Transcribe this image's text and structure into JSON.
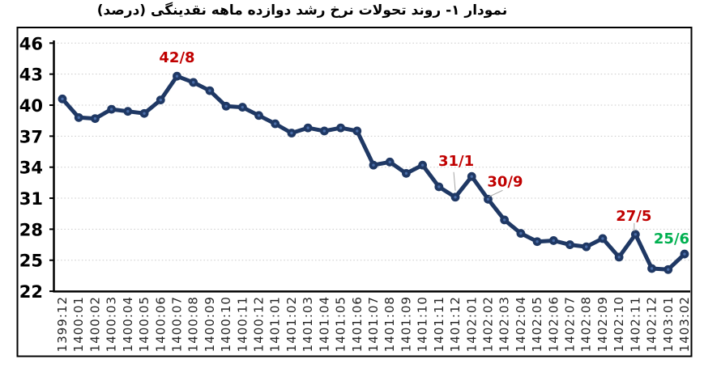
{
  "title": "نمودار ۱- روند تحولات نرخ رشد دوازده ماهه نقدینگی (درصد)",
  "colors": {
    "line": "#1f3864",
    "marker": "#1f3864",
    "marker_center": "#4a6da8",
    "annotation_red": "#c00000",
    "annotation_green": "#00b050",
    "leader_line": "#a6a6a6",
    "grid": "#c9c9c9",
    "axis": "#000000",
    "frame": "#000000",
    "x_tick_label": "#262626",
    "y_tick_label": "#000000"
  },
  "chart_data": {
    "type": "line",
    "title": "نمودار ۱- روند تحولات نرخ رشد دوازده ماهه نقدینگی (درصد)",
    "xlabel": "",
    "ylabel": "",
    "ylim": [
      22,
      46
    ],
    "y_ticks": [
      46,
      43,
      40,
      37,
      34,
      31,
      28,
      25,
      22
    ],
    "grid": "horizontal-dotted",
    "legend": "none",
    "categories": [
      "1399:12",
      "1400:01",
      "1400:02",
      "1400:03",
      "1400:04",
      "1400:05",
      "1400:06",
      "1400:07",
      "1400:08",
      "1400:09",
      "1400:10",
      "1400:11",
      "1400:12",
      "1401:01",
      "1401:02",
      "1401:03",
      "1401:04",
      "1401:05",
      "1401:06",
      "1401:07",
      "1401:08",
      "1401:09",
      "1401:10",
      "1401:11",
      "1401:12",
      "1402:01",
      "1402:02",
      "1402:03",
      "1402:04",
      "1402:05",
      "1402:06",
      "1402:07",
      "1402:08",
      "1402:09",
      "1402:10",
      "1402:11",
      "1402:12",
      "1403:01",
      "1403:02"
    ],
    "values": [
      40.6,
      38.8,
      38.7,
      39.6,
      39.4,
      39.2,
      40.5,
      42.8,
      42.2,
      41.4,
      39.9,
      39.8,
      39.0,
      38.2,
      37.3,
      37.8,
      37.5,
      37.8,
      37.5,
      34.2,
      34.5,
      33.4,
      34.2,
      32.1,
      31.1,
      33.1,
      30.9,
      28.9,
      27.6,
      26.8,
      26.9,
      26.5,
      26.3,
      27.1,
      25.3,
      27.5,
      24.2,
      24.1,
      25.6
    ],
    "annotations": [
      {
        "category": "1400:07",
        "value": 42.8,
        "text": "42/8",
        "color": "red"
      },
      {
        "category": "1401:12",
        "value": 31.1,
        "text": "31/1",
        "color": "red"
      },
      {
        "category": "1402:02",
        "value": 30.9,
        "text": "30/9",
        "color": "red"
      },
      {
        "category": "1402:11",
        "value": 27.5,
        "text": "27/5",
        "color": "red"
      },
      {
        "category": "1403:02",
        "value": 25.6,
        "text": "25/6",
        "color": "green"
      }
    ]
  }
}
